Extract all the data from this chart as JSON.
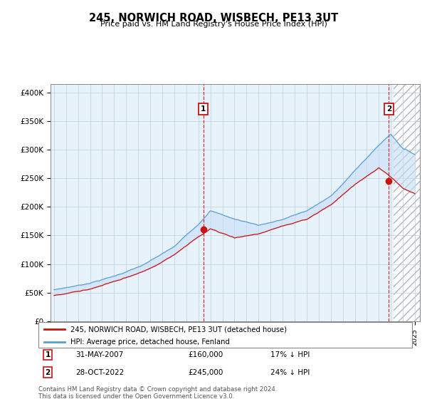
{
  "title": "245, NORWICH ROAD, WISBECH, PE13 3UT",
  "subtitle": "Price paid vs. HM Land Registry's House Price Index (HPI)",
  "ylabel_ticks": [
    "£0",
    "£50K",
    "£100K",
    "£150K",
    "£200K",
    "£250K",
    "£300K",
    "£350K",
    "£400K"
  ],
  "ytick_values": [
    0,
    50000,
    100000,
    150000,
    200000,
    250000,
    300000,
    350000,
    400000
  ],
  "ylim": [
    0,
    415000
  ],
  "xlim_start": 1994.7,
  "xlim_end": 2025.4,
  "hpi_color": "#5aa0d8",
  "hpi_fill_color": "#c8dff5",
  "price_color": "#cc1111",
  "marker1_date": 2007.42,
  "marker1_value": 160000,
  "marker2_date": 2022.83,
  "marker2_value": 245000,
  "cutoff_date": 2023.2,
  "legend_label1": "245, NORWICH ROAD, WISBECH, PE13 3UT (detached house)",
  "legend_label2": "HPI: Average price, detached house, Fenland",
  "annotation1_date": "31-MAY-2007",
  "annotation1_price": "£160,000",
  "annotation1_hpi": "17% ↓ HPI",
  "annotation2_date": "28-OCT-2022",
  "annotation2_price": "£245,000",
  "annotation2_hpi": "24% ↓ HPI",
  "footer": "Contains HM Land Registry data © Crown copyright and database right 2024.\nThis data is licensed under the Open Government Licence v3.0.",
  "background_color": "#ffffff",
  "chart_bg_color": "#e8f2fa",
  "grid_color": "#b8cfe0"
}
